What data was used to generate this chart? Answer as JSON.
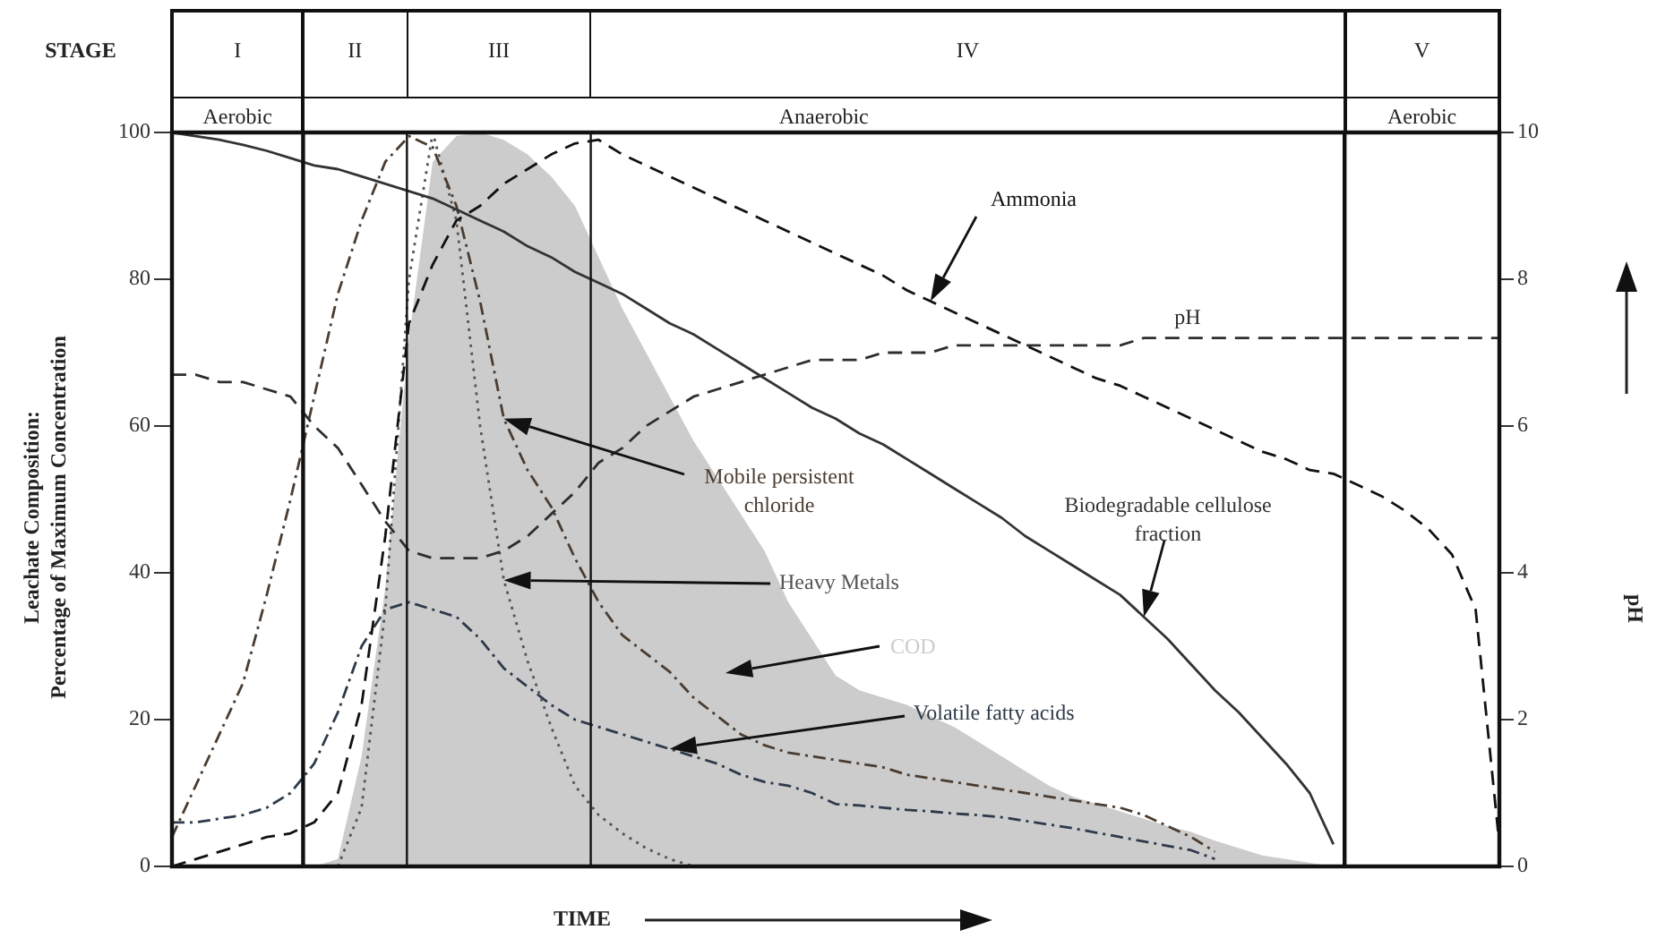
{
  "chart_data": {
    "type": "line",
    "categories": [
      null,
      null,
      null,
      null,
      null,
      null,
      null,
      null,
      null,
      null,
      null,
      null,
      null,
      null,
      null,
      null,
      null,
      null,
      null,
      null,
      null,
      null,
      null,
      null,
      null,
      null,
      null,
      null,
      null,
      null,
      null,
      null,
      null,
      null,
      null,
      null,
      null,
      null,
      null,
      null,
      null,
      null,
      null,
      null,
      null,
      null,
      null,
      null,
      null,
      null,
      null,
      null,
      null,
      null,
      null,
      null,
      null
    ],
    "ylim": [
      0,
      100
    ],
    "yticks": [
      0,
      20,
      40,
      60,
      80,
      100
    ],
    "y2lim": [
      0,
      10
    ],
    "y2ticks": [
      0,
      2,
      4,
      6,
      8,
      10
    ],
    "ylabel": "Leachate Composition: Percentage of Maximum Concentration",
    "y2label": "pH",
    "xlabel": "TIME",
    "grid": false,
    "legend": false,
    "marker": "none",
    "annotations": [
      "STAGE",
      "I",
      "II",
      "III",
      "IV",
      "V",
      "Aerobic",
      "Anaerobic",
      "Aerobic"
    ],
    "series": [
      {
        "name": "COD",
        "type": "area",
        "color": "#cccccc",
        "values": [
          null,
          null,
          null,
          null,
          null,
          null,
          0,
          1,
          15,
          38,
          72,
          96,
          99.5,
          100,
          99,
          97,
          94,
          90,
          83,
          76,
          70,
          64,
          58,
          53,
          48,
          43,
          36,
          31,
          26,
          24,
          23,
          22,
          20.5,
          19,
          17,
          15,
          13,
          11,
          9.5,
          8.5,
          7.5,
          6.5,
          5.5,
          4.7,
          3.5,
          2.5,
          1.5,
          1,
          0.5,
          0,
          null,
          null,
          null,
          null,
          null,
          null,
          null
        ]
      },
      {
        "name": "Biodegradable cellulose fraction",
        "color": "#333333",
        "line_style": "solid",
        "values": [
          100,
          99.5,
          99,
          98.3,
          97.5,
          96.5,
          95.5,
          95,
          94,
          93,
          92,
          91,
          89.5,
          88,
          86.5,
          84.5,
          83,
          81,
          79.5,
          78,
          76,
          74,
          72.5,
          70.5,
          68.5,
          66.5,
          64.5,
          62.5,
          61,
          59,
          57.5,
          55.5,
          53.5,
          51.5,
          49.5,
          47.5,
          45,
          43,
          41,
          39,
          37,
          34,
          31,
          27.5,
          24,
          21,
          17.5,
          14,
          10,
          3,
          null,
          null,
          null,
          null,
          null,
          null,
          null
        ]
      },
      {
        "name": "Ammonia",
        "color": "#111111",
        "line_style": "dashed",
        "values": [
          0,
          1,
          2,
          3,
          4,
          4.5,
          6,
          10,
          22,
          45,
          74,
          82,
          88,
          90,
          93,
          95,
          97,
          98.5,
          99,
          97,
          95.5,
          94,
          92.5,
          91,
          89.5,
          88,
          86.5,
          85,
          83.5,
          82,
          80.5,
          78.5,
          77,
          75.5,
          74,
          72.5,
          71,
          69.5,
          68,
          66.5,
          65.5,
          64,
          62.5,
          61,
          59.5,
          58,
          56.5,
          55.5,
          54,
          53.5,
          52,
          50.5,
          48.5,
          46,
          42.5,
          35,
          3
        ]
      },
      {
        "name": "pH",
        "color": "#2e2e2e",
        "line_style": "dashed",
        "axis": "y2",
        "values": [
          6.7,
          6.7,
          6.6,
          6.6,
          6.5,
          6.4,
          6.0,
          5.7,
          5.2,
          4.7,
          4.3,
          4.2,
          4.2,
          4.2,
          4.3,
          4.5,
          4.8,
          5.1,
          5.5,
          5.7,
          6.0,
          6.2,
          6.4,
          6.5,
          6.6,
          6.7,
          6.8,
          6.9,
          6.9,
          6.9,
          7.0,
          7.0,
          7.0,
          7.1,
          7.1,
          7.1,
          7.1,
          7.1,
          7.1,
          7.1,
          7.1,
          7.2,
          7.2,
          7.2,
          7.2,
          7.2,
          7.2,
          7.2,
          7.2,
          7.2,
          7.2,
          7.2,
          7.2,
          7.2,
          7.2,
          7.2,
          7.2
        ]
      },
      {
        "name": "Mobile persistent chloride",
        "color": "#4a3c30",
        "line_style": "dashdot",
        "values": [
          4,
          11,
          18,
          25,
          37,
          50,
          64,
          78,
          88,
          96,
          99.5,
          98,
          90,
          77,
          61,
          54,
          49,
          42,
          36,
          31.5,
          29,
          26.5,
          23,
          20.5,
          18,
          16.5,
          15.5,
          15,
          14.5,
          14,
          13.5,
          12.5,
          12,
          11.5,
          11,
          10.5,
          10,
          9.5,
          9,
          8.5,
          8,
          7,
          5.5,
          4,
          2,
          null,
          null,
          null,
          null,
          null,
          null,
          null,
          null,
          null,
          null,
          null,
          null
        ]
      },
      {
        "name": "Heavy Metals",
        "color": "#555555",
        "line_style": "dotted",
        "values": [
          null,
          null,
          null,
          null,
          null,
          null,
          null,
          0,
          8,
          35,
          80,
          100,
          88,
          60,
          39,
          28,
          19,
          11,
          7,
          4.5,
          2.5,
          1,
          0,
          null,
          null,
          null,
          null,
          null,
          null,
          null,
          null,
          null,
          null,
          null,
          null,
          null,
          null,
          null,
          null,
          null,
          null,
          null,
          null,
          null,
          null,
          null,
          null,
          null,
          null,
          null,
          null,
          null,
          null,
          null,
          null,
          null,
          null
        ]
      },
      {
        "name": "Volatile fatty acids",
        "color": "#2e3a4a",
        "line_style": "dashdot",
        "values": [
          6,
          6,
          6.5,
          7,
          8,
          10,
          14,
          21,
          30,
          35,
          36,
          35,
          34,
          31,
          27,
          24.5,
          22,
          20,
          19,
          18,
          17,
          16,
          15,
          14,
          12.5,
          11.5,
          11,
          10,
          8.5,
          8.3,
          8,
          7.7,
          7.5,
          7.2,
          7,
          6.7,
          6.2,
          5.7,
          5.2,
          4.6,
          4,
          3.4,
          2.8,
          2.2,
          1,
          null,
          null,
          null,
          null,
          null,
          null,
          null,
          null,
          null,
          null,
          null,
          null
        ]
      }
    ]
  }
}
